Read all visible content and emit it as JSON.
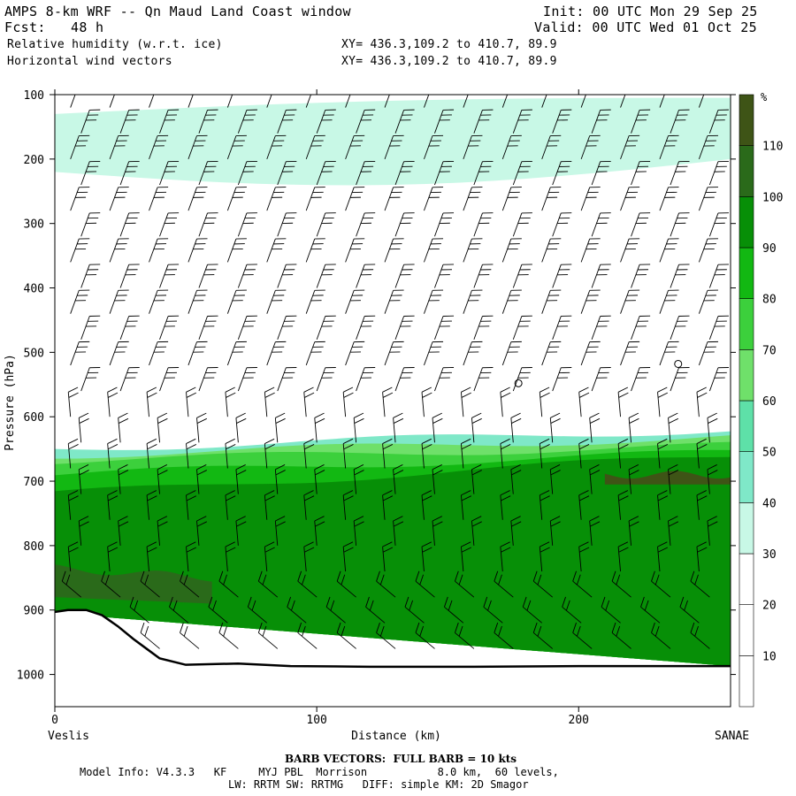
{
  "header": {
    "title": "AMPS 8-km WRF -- Qn Maud Land Coast window",
    "fcst_label": "Fcst:",
    "fcst_value": "48 h",
    "field1": "Relative humidity (w.r.t. ice)",
    "field2": "Horizontal wind vectors",
    "xy1": "XY= 436.3,109.2 to 410.7, 89.9",
    "xy2": "XY= 436.3,109.2 to 410.7, 89.9",
    "init": "Init: 00 UTC Mon 29 Sep 25",
    "valid": "Valid: 00 UTC Wed 01 Oct 25"
  },
  "footer": {
    "barb_note": "BARB VECTORS:  FULL BARB = 10 kts",
    "model_info": "Model Info: V4.3.3   KF     MYJ PBL  Morrison           8.0 km,  60 levels,",
    "model_info2": "LW: RRTM SW: RRTMG   DIFF: simple KM: 2D Smagor"
  },
  "colors": {
    "ground": "#000000",
    "levels": [
      "#ffffff",
      "#ffffff",
      "#ffffff",
      "#c8f8e6",
      "#7fe8c8",
      "#5ee0a8",
      "#6fe06a",
      "#3cd03c",
      "#12b812",
      "#078f07",
      "#2a6a1a",
      "#3e5416",
      "#d43a0a"
    ]
  },
  "chart_data": {
    "type": "heatmap",
    "title": "Relative humidity (w.r.t. ice)",
    "xlabel": "Distance (km)",
    "ylabel": "Pressure (hPa)",
    "xlim": [
      0,
      258
    ],
    "ylim": [
      1050,
      100
    ],
    "x_ticks": [
      0,
      100,
      200
    ],
    "y_ticks": [
      100,
      200,
      300,
      400,
      500,
      600,
      700,
      800,
      900,
      1000
    ],
    "x_endpoints": {
      "left": "Veslis",
      "right": "SANAE"
    },
    "colorbar": {
      "unit": "%",
      "levels": [
        10,
        20,
        30,
        40,
        50,
        60,
        70,
        80,
        90,
        100,
        110
      ],
      "max": 120
    },
    "ground_surface_hpa": [
      [
        0,
        903
      ],
      [
        5,
        900
      ],
      [
        12,
        900
      ],
      [
        18,
        908
      ],
      [
        24,
        925
      ],
      [
        30,
        945
      ],
      [
        35,
        960
      ],
      [
        40,
        975
      ],
      [
        50,
        985
      ],
      [
        70,
        983
      ],
      [
        90,
        987
      ],
      [
        120,
        988
      ],
      [
        160,
        988
      ],
      [
        200,
        987
      ],
      [
        258,
        987
      ]
    ],
    "rh_layers": [
      {
        "level": 40,
        "x": [
          0,
          258
        ],
        "top_hpa": [
          650,
          620
        ],
        "bottom_hpa": [
          905,
          987
        ]
      },
      {
        "level": 60,
        "x": [
          0,
          258
        ],
        "top_hpa": [
          660,
          632
        ],
        "bottom_hpa": [
          905,
          987
        ]
      },
      {
        "level": 70,
        "x": [
          0,
          258
        ],
        "top_hpa": [
          668,
          645
        ],
        "bottom_hpa": [
          905,
          987
        ]
      },
      {
        "level": 80,
        "x": [
          0,
          258
        ],
        "top_hpa": [
          690,
          655
        ],
        "bottom_hpa": [
          905,
          987
        ]
      },
      {
        "level": 90,
        "x": [
          0,
          258
        ],
        "top_hpa": [
          720,
          660
        ],
        "bottom_hpa": [
          905,
          987
        ]
      },
      {
        "level": 100,
        "x": [
          0,
          60
        ],
        "top_hpa": [
          835,
          850
        ],
        "bottom_hpa": [
          880,
          890
        ]
      },
      {
        "level": 110,
        "x": [
          210,
          258
        ],
        "top_hpa": [
          690,
          690
        ],
        "bottom_hpa": [
          705,
          705
        ]
      }
    ],
    "upper_moist_band": {
      "level": 30,
      "x": [
        0,
        258
      ],
      "top_hpa": [
        130,
        105
      ],
      "bottom_hpa": [
        220,
        200
      ]
    },
    "barb_columns_km": [
      8,
      23,
      38,
      53,
      68,
      83,
      98,
      113,
      128,
      143,
      158,
      173,
      188,
      203,
      218,
      233,
      248
    ],
    "barb_levels_hpa": [
      120,
      160,
      200,
      240,
      280,
      320,
      360,
      400,
      440,
      480,
      520,
      560,
      600,
      640,
      680,
      720,
      760,
      800,
      840,
      880,
      920,
      960,
      990
    ],
    "calm_points": [
      {
        "x_km": 177,
        "p_hpa": 548
      },
      {
        "x_km": 238,
        "p_hpa": 518
      }
    ]
  }
}
